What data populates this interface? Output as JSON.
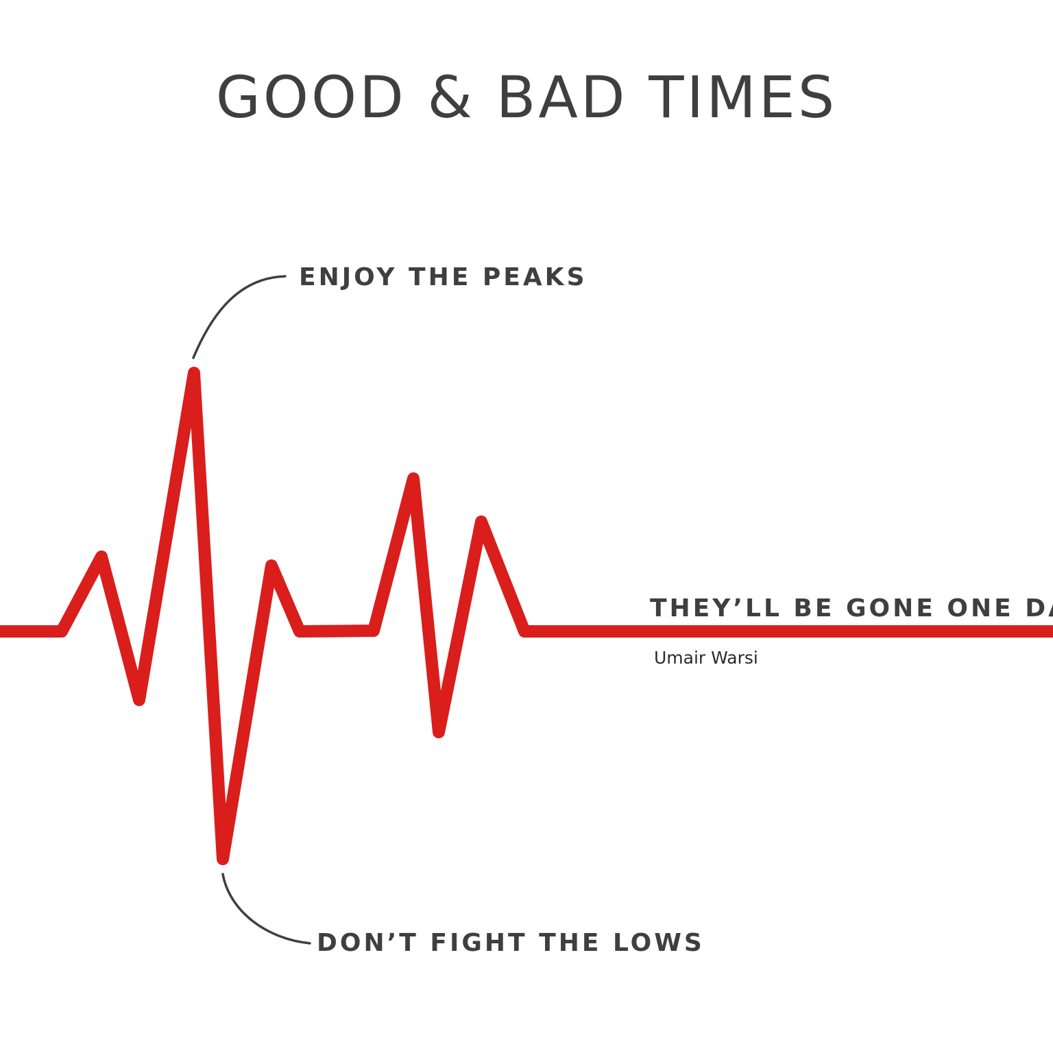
{
  "title": "GOOD & BAD TIMES",
  "annotations": {
    "peaks": "ENJOY THE PEAKS",
    "lows": "DON’T FIGHT THE LOWS",
    "gone": "THEY’LL BE GONE ONE DAY"
  },
  "author": "Umair Warsi",
  "colors": {
    "line": "#d91e1c",
    "text": "#3f3f3f",
    "background": "#ffffff"
  }
}
